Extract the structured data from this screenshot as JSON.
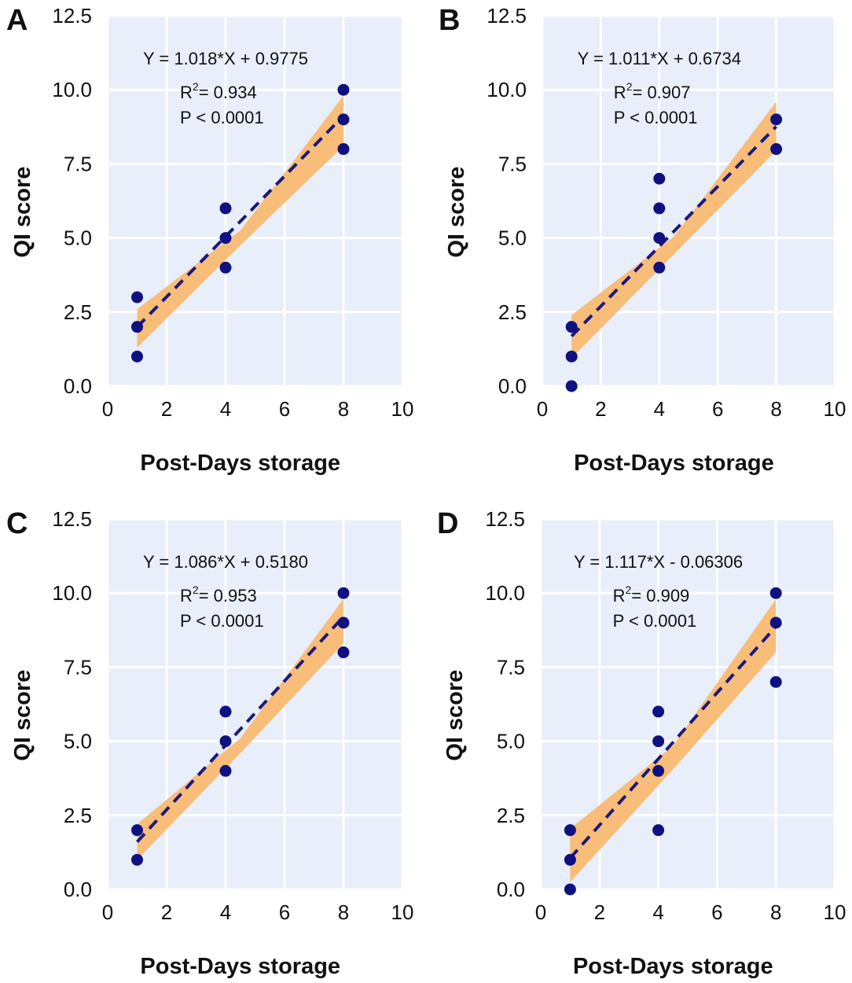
{
  "colors": {
    "plot_background": "#e8eefa",
    "gridline": "#ffffff",
    "point": "#0f1180",
    "fit_line": "#1a1a7a",
    "confidence_band": "#f9bd7a"
  },
  "chart_data": [
    {
      "panel": "A",
      "type": "scatter",
      "xlabel": "Post-Days storage",
      "ylabel": "QI score",
      "xlim": [
        0,
        10
      ],
      "ylim": [
        0,
        12.5
      ],
      "xticks": [
        "0",
        "2",
        "4",
        "6",
        "8",
        "10"
      ],
      "yticks": [
        "0.0",
        "2.5",
        "5.0",
        "7.5",
        "10.0",
        "12.5"
      ],
      "points": [
        {
          "x": 1,
          "y": 1
        },
        {
          "x": 1,
          "y": 2
        },
        {
          "x": 1,
          "y": 3
        },
        {
          "x": 4,
          "y": 4
        },
        {
          "x": 4,
          "y": 5
        },
        {
          "x": 4,
          "y": 6
        },
        {
          "x": 8,
          "y": 8
        },
        {
          "x": 8,
          "y": 9
        },
        {
          "x": 8,
          "y": 10
        }
      ],
      "fit": {
        "slope": 1.018,
        "intercept": 0.9775,
        "x_range": [
          1,
          8
        ]
      },
      "band": {
        "lower": [
          1.3,
          4.75,
          8.1
        ],
        "upper": [
          2.6,
          5.25,
          9.8
        ]
      },
      "equation": "Y = 1.018*X + 0.9775",
      "r_squared_prefix": "R",
      "r_squared_sup": "2",
      "r_squared_value": "= 0.934",
      "p_value": "P < 0.0001"
    },
    {
      "panel": "B",
      "type": "scatter",
      "xlabel": "Post-Days storage",
      "ylabel": "QI score",
      "xlim": [
        0,
        10
      ],
      "ylim": [
        0,
        12.5
      ],
      "xticks": [
        "0",
        "2",
        "4",
        "6",
        "8",
        "10"
      ],
      "yticks": [
        "0.0",
        "2.5",
        "5.0",
        "7.5",
        "10.0",
        "12.5"
      ],
      "points": [
        {
          "x": 1,
          "y": 0
        },
        {
          "x": 1,
          "y": 1
        },
        {
          "x": 1,
          "y": 2
        },
        {
          "x": 4,
          "y": 4
        },
        {
          "x": 4,
          "y": 5
        },
        {
          "x": 4,
          "y": 6
        },
        {
          "x": 4,
          "y": 7
        },
        {
          "x": 8,
          "y": 8
        },
        {
          "x": 8,
          "y": 9
        }
      ],
      "fit": {
        "slope": 1.011,
        "intercept": 0.6734,
        "x_range": [
          1,
          8
        ]
      },
      "band": {
        "lower": [
          0.95,
          4.45,
          7.95
        ],
        "upper": [
          2.4,
          5.05,
          9.6
        ]
      },
      "equation": "Y = 1.011*X + 0.6734",
      "r_squared_prefix": "R",
      "r_squared_sup": "2",
      "r_squared_value": "= 0.907",
      "p_value": "P < 0.0001"
    },
    {
      "panel": "C",
      "type": "scatter",
      "xlabel": "Post-Days storage",
      "ylabel": "QI score",
      "xlim": [
        0,
        10
      ],
      "ylim": [
        0,
        12.5
      ],
      "xticks": [
        "0",
        "2",
        "4",
        "6",
        "8",
        "10"
      ],
      "yticks": [
        "0.0",
        "2.5",
        "5.0",
        "7.5",
        "10.0",
        "12.5"
      ],
      "points": [
        {
          "x": 1,
          "y": 1
        },
        {
          "x": 1,
          "y": 2
        },
        {
          "x": 4,
          "y": 4
        },
        {
          "x": 4,
          "y": 5
        },
        {
          "x": 4,
          "y": 6
        },
        {
          "x": 8,
          "y": 8
        },
        {
          "x": 8,
          "y": 9
        },
        {
          "x": 8,
          "y": 10
        }
      ],
      "fit": {
        "slope": 1.086,
        "intercept": 0.518,
        "x_range": [
          1,
          8
        ]
      },
      "band": {
        "lower": [
          1.0,
          4.6,
          8.3
        ],
        "upper": [
          2.2,
          5.1,
          9.8
        ]
      },
      "equation": "Y = 1.086*X + 0.5180",
      "r_squared_prefix": "R",
      "r_squared_sup": "2",
      "r_squared_value": "= 0.953",
      "p_value": "P < 0.0001"
    },
    {
      "panel": "D",
      "type": "scatter",
      "xlabel": "Post-Days storage",
      "ylabel": "QI score",
      "xlim": [
        0,
        10
      ],
      "ylim": [
        0,
        12.5
      ],
      "xticks": [
        "0",
        "2",
        "4",
        "6",
        "8",
        "10"
      ],
      "yticks": [
        "0.0",
        "2.5",
        "5.0",
        "7.5",
        "10.0",
        "12.5"
      ],
      "points": [
        {
          "x": 1,
          "y": 0
        },
        {
          "x": 1,
          "y": 1
        },
        {
          "x": 1,
          "y": 2
        },
        {
          "x": 4,
          "y": 2
        },
        {
          "x": 4,
          "y": 4
        },
        {
          "x": 4,
          "y": 5
        },
        {
          "x": 4,
          "y": 6
        },
        {
          "x": 8,
          "y": 7
        },
        {
          "x": 8,
          "y": 9
        },
        {
          "x": 8,
          "y": 10
        }
      ],
      "fit": {
        "slope": 1.117,
        "intercept": -0.06306,
        "x_range": [
          1,
          8
        ]
      },
      "band": {
        "lower": [
          0.25,
          4.05,
          8.0
        ],
        "upper": [
          2.05,
          4.85,
          9.8
        ]
      },
      "equation": "Y = 1.117*X - 0.06306",
      "r_squared_prefix": "R",
      "r_squared_sup": "2",
      "r_squared_value": "= 0.909",
      "p_value": "P < 0.0001"
    }
  ]
}
